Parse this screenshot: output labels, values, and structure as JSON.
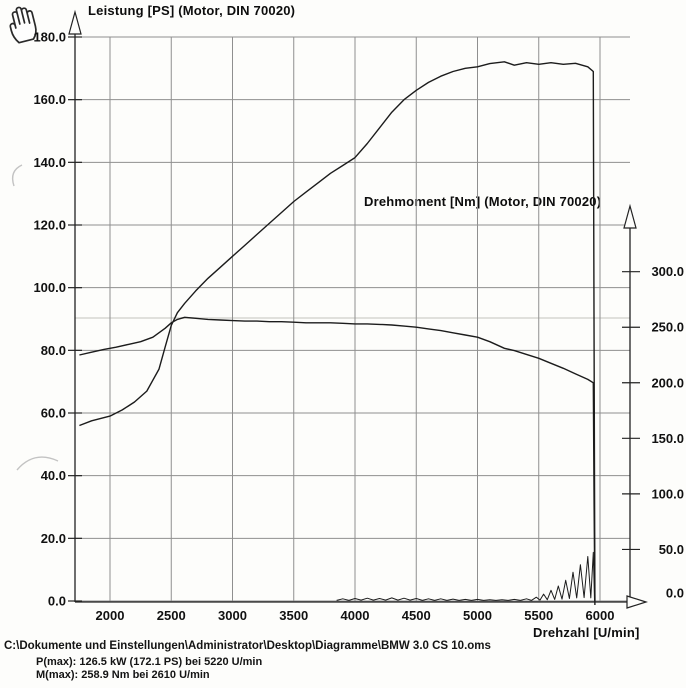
{
  "cursor": {
    "type": "pan-hand"
  },
  "chart_data": {
    "type": "line",
    "grid": true,
    "x": {
      "label": "Drehzahl [U/min]",
      "range": [
        1700,
        6350
      ],
      "ticks": [
        2000,
        2500,
        3000,
        3500,
        4000,
        4500,
        5000,
        5500,
        6000
      ]
    },
    "y_left": {
      "label": "Leistung [PS] (Motor, DIN 70020)",
      "range": [
        0,
        181
      ],
      "ticks": [
        0,
        20,
        40,
        60,
        80,
        100,
        120,
        140,
        160,
        180
      ],
      "tick_labels": [
        "0.0",
        "20.0",
        "40.0",
        "60.0",
        "80.0",
        "100.0",
        "120.0",
        "140.0",
        "160.0",
        "180.0"
      ]
    },
    "y_right": {
      "label": "Drehmoment [Nm] (Motor, DIN 70020)",
      "range": [
        0,
        340
      ],
      "ticks": [
        0,
        50,
        100,
        150,
        200,
        250,
        300
      ],
      "tick_labels": [
        "0.0",
        "50.0",
        "100.0",
        "150.0",
        "200.0",
        "250.0",
        "300.0"
      ]
    },
    "series": [
      {
        "id": "power-curve",
        "axis": "left",
        "points": [
          [
            1750,
            56
          ],
          [
            1850,
            57.5
          ],
          [
            2000,
            59
          ],
          [
            2100,
            61
          ],
          [
            2200,
            63.5
          ],
          [
            2300,
            67
          ],
          [
            2400,
            74
          ],
          [
            2450,
            81
          ],
          [
            2500,
            88
          ],
          [
            2550,
            92
          ],
          [
            2610,
            95
          ],
          [
            2700,
            99
          ],
          [
            2800,
            103
          ],
          [
            2900,
            106.5
          ],
          [
            3000,
            110
          ],
          [
            3100,
            113.5
          ],
          [
            3200,
            117
          ],
          [
            3300,
            120.5
          ],
          [
            3400,
            124
          ],
          [
            3500,
            127.5
          ],
          [
            3600,
            130.5
          ],
          [
            3700,
            133.5
          ],
          [
            3800,
            136.5
          ],
          [
            3900,
            139
          ],
          [
            4000,
            141.5
          ],
          [
            4100,
            146
          ],
          [
            4200,
            151
          ],
          [
            4300,
            156
          ],
          [
            4400,
            160
          ],
          [
            4500,
            163
          ],
          [
            4600,
            165.5
          ],
          [
            4700,
            167.5
          ],
          [
            4800,
            169
          ],
          [
            4900,
            170
          ],
          [
            5000,
            170.5
          ],
          [
            5100,
            171.5
          ],
          [
            5220,
            172.1
          ],
          [
            5300,
            171
          ],
          [
            5400,
            171.8
          ],
          [
            5500,
            171.3
          ],
          [
            5600,
            171.8
          ],
          [
            5700,
            171.3
          ],
          [
            5800,
            171.6
          ],
          [
            5900,
            170.5
          ],
          [
            5945,
            169
          ],
          [
            5952,
            80
          ],
          [
            5958,
            0
          ]
        ]
      },
      {
        "id": "torque-curve",
        "axis": "right",
        "points": [
          [
            1750,
            225
          ],
          [
            1850,
            227.5
          ],
          [
            1950,
            230
          ],
          [
            2050,
            232
          ],
          [
            2150,
            234.5
          ],
          [
            2250,
            237
          ],
          [
            2350,
            241
          ],
          [
            2450,
            249
          ],
          [
            2500,
            254
          ],
          [
            2550,
            257
          ],
          [
            2610,
            258.9
          ],
          [
            2700,
            258
          ],
          [
            2800,
            257
          ],
          [
            2900,
            256.5
          ],
          [
            3000,
            256
          ],
          [
            3100,
            255.5
          ],
          [
            3200,
            255.5
          ],
          [
            3300,
            255
          ],
          [
            3400,
            255
          ],
          [
            3500,
            254.5
          ],
          [
            3600,
            254
          ],
          [
            3700,
            254
          ],
          [
            3800,
            254
          ],
          [
            3900,
            253.5
          ],
          [
            4000,
            253
          ],
          [
            4100,
            253
          ],
          [
            4200,
            252.5
          ],
          [
            4300,
            252
          ],
          [
            4400,
            251
          ],
          [
            4500,
            250
          ],
          [
            4600,
            248.5
          ],
          [
            4700,
            247
          ],
          [
            4800,
            245
          ],
          [
            4900,
            243
          ],
          [
            5000,
            241
          ],
          [
            5100,
            237
          ],
          [
            5220,
            231
          ],
          [
            5300,
            229
          ],
          [
            5400,
            225.5
          ],
          [
            5500,
            222
          ],
          [
            5600,
            217.5
          ],
          [
            5700,
            213
          ],
          [
            5800,
            208
          ],
          [
            5900,
            203
          ],
          [
            5945,
            200
          ],
          [
            5952,
            90
          ],
          [
            5958,
            0
          ]
        ]
      },
      {
        "id": "noise-baseline-curve",
        "axis": "left",
        "points": [
          [
            3850,
            0.2
          ],
          [
            3900,
            0.7
          ],
          [
            3950,
            0.2
          ],
          [
            4000,
            0.8
          ],
          [
            4050,
            0.3
          ],
          [
            4100,
            0.9
          ],
          [
            4150,
            0.3
          ],
          [
            4200,
            0.8
          ],
          [
            4250,
            0.3
          ],
          [
            4300,
            1.0
          ],
          [
            4350,
            0.3
          ],
          [
            4400,
            0.9
          ],
          [
            4450,
            0.3
          ],
          [
            4500,
            0.8
          ],
          [
            4550,
            0.2
          ],
          [
            4600,
            0.7
          ],
          [
            4650,
            0.2
          ],
          [
            4700,
            0.7
          ],
          [
            4750,
            0.2
          ],
          [
            4800,
            0.6
          ],
          [
            4850,
            0.2
          ],
          [
            4900,
            0.5
          ],
          [
            4950,
            0.2
          ],
          [
            5000,
            0.5
          ],
          [
            5050,
            0.2
          ],
          [
            5100,
            0.4
          ],
          [
            5150,
            0.2
          ],
          [
            5200,
            0.4
          ],
          [
            5250,
            0.2
          ],
          [
            5300,
            0.5
          ],
          [
            5350,
            0.2
          ],
          [
            5400,
            0.7
          ],
          [
            5440,
            0.2
          ],
          [
            5480,
            1.2
          ],
          [
            5510,
            0.3
          ],
          [
            5540,
            2.2
          ],
          [
            5570,
            0.4
          ],
          [
            5600,
            3.4
          ],
          [
            5630,
            0.5
          ],
          [
            5660,
            4.8
          ],
          [
            5690,
            0.6
          ],
          [
            5720,
            6.6
          ],
          [
            5750,
            0.8
          ],
          [
            5780,
            9.2
          ],
          [
            5810,
            1.0
          ],
          [
            5840,
            11.6
          ],
          [
            5870,
            1.1
          ],
          [
            5900,
            14.2
          ],
          [
            5925,
            1.0
          ],
          [
            5945,
            15.5
          ],
          [
            5955,
            0.2
          ]
        ]
      }
    ]
  },
  "footer": {
    "file_path": "C:\\Dokumente und Einstellungen\\Administrator\\Desktop\\Diagramme\\BMW 3.0 CS 10.oms",
    "p_max_label": "P(max): 126.5 kW (172.1 PS) bei 5220 U/min",
    "m_max_label": "M(max): 258.9 Nm bei 2610 U/min"
  }
}
